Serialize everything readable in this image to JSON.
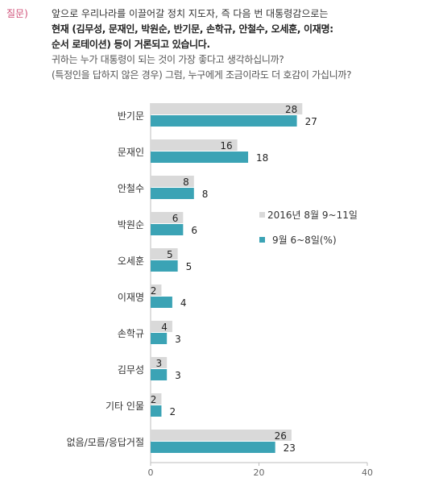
{
  "question": {
    "label": "질문)",
    "lines": [
      "앞으로 우리나라를 이끌어갈 정치 지도자, 즉 다음 번 대통령감으로는",
      "현재 (김무성, 문재인, 박원순, 반기문, 손학규, 안철수, 오세훈, 이재명:",
      "순서 로테이션) 등이 거론되고 있습니다.",
      "귀하는 누가 대통령이 되는 것이 가장 좋다고 생각하십니까?",
      "(특정인을 답하지 않은 경우) 그럼, 누구에게 조금이라도 더 호감이 가십니까?"
    ]
  },
  "colors": {
    "series1": "#d9d9d9",
    "series2": "#3ba3b5"
  },
  "chart_data": {
    "type": "bar",
    "orientation": "horizontal",
    "categories": [
      "반기문",
      "문재인",
      "안철수",
      "박원순",
      "오세훈",
      "이재명",
      "손학규",
      "김무성",
      "기타 인물",
      "없음/모름/응답거절"
    ],
    "series": [
      {
        "name": "2016년 8월 9~11일",
        "values": [
          28,
          16,
          8,
          6,
          5,
          2,
          4,
          3,
          2,
          26
        ]
      },
      {
        "name": "9월 6~8일(%)",
        "values": [
          27,
          18,
          8,
          6,
          5,
          4,
          3,
          3,
          2,
          23
        ]
      }
    ],
    "xlim": [
      0,
      40
    ],
    "xticks": [
      "0",
      "20",
      "40"
    ],
    "legend_position": "right"
  }
}
